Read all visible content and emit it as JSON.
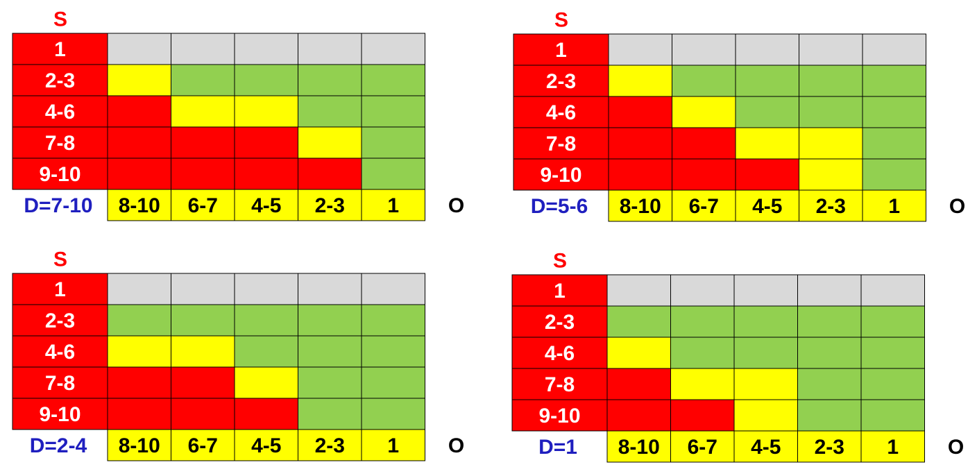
{
  "panels": [
    {
      "s_label": "S",
      "o_label": "O",
      "d_label": "D=7-10",
      "rows": [
        "1",
        "2-3",
        "4-6",
        "7-8",
        "9-10"
      ],
      "columns": [
        "8-10",
        "6-7",
        "4-5",
        "2-3",
        "1"
      ],
      "cells": [
        [
          "#d9d9d9",
          "#d9d9d9",
          "#d9d9d9",
          "#d9d9d9",
          "#d9d9d9"
        ],
        [
          "#ffff00",
          "#92d050",
          "#92d050",
          "#92d050",
          "#92d050"
        ],
        [
          "#ff0000",
          "#ffff00",
          "#ffff00",
          "#92d050",
          "#92d050"
        ],
        [
          "#ff0000",
          "#ff0000",
          "#ff0000",
          "#ffff00",
          "#92d050"
        ],
        [
          "#ff0000",
          "#ff0000",
          "#ff0000",
          "#ff0000",
          "#92d050"
        ]
      ]
    },
    {
      "s_label": "S",
      "o_label": "O",
      "d_label": "D=5-6",
      "rows": [
        "1",
        "2-3",
        "4-6",
        "7-8",
        "9-10"
      ],
      "columns": [
        "8-10",
        "6-7",
        "4-5",
        "2-3",
        "1"
      ],
      "cells": [
        [
          "#d9d9d9",
          "#d9d9d9",
          "#d9d9d9",
          "#d9d9d9",
          "#d9d9d9"
        ],
        [
          "#ffff00",
          "#92d050",
          "#92d050",
          "#92d050",
          "#92d050"
        ],
        [
          "#ff0000",
          "#ffff00",
          "#92d050",
          "#92d050",
          "#92d050"
        ],
        [
          "#ff0000",
          "#ff0000",
          "#ffff00",
          "#ffff00",
          "#92d050"
        ],
        [
          "#ff0000",
          "#ff0000",
          "#ff0000",
          "#ffff00",
          "#92d050"
        ]
      ]
    },
    {
      "s_label": "S",
      "o_label": "O",
      "d_label": "D=2-4",
      "rows": [
        "1",
        "2-3",
        "4-6",
        "7-8",
        "9-10"
      ],
      "columns": [
        "8-10",
        "6-7",
        "4-5",
        "2-3",
        "1"
      ],
      "cells": [
        [
          "#d9d9d9",
          "#d9d9d9",
          "#d9d9d9",
          "#d9d9d9",
          "#d9d9d9"
        ],
        [
          "#92d050",
          "#92d050",
          "#92d050",
          "#92d050",
          "#92d050"
        ],
        [
          "#ffff00",
          "#ffff00",
          "#92d050",
          "#92d050",
          "#92d050"
        ],
        [
          "#ff0000",
          "#ff0000",
          "#ffff00",
          "#92d050",
          "#92d050"
        ],
        [
          "#ff0000",
          "#ff0000",
          "#ff0000",
          "#92d050",
          "#92d050"
        ]
      ]
    },
    {
      "s_label": "S",
      "o_label": "O",
      "d_label": "D=1",
      "rows": [
        "1",
        "2-3",
        "4-6",
        "7-8",
        "9-10"
      ],
      "columns": [
        "8-10",
        "6-7",
        "4-5",
        "2-3",
        "1"
      ],
      "cells": [
        [
          "#d9d9d9",
          "#d9d9d9",
          "#d9d9d9",
          "#d9d9d9",
          "#d9d9d9"
        ],
        [
          "#92d050",
          "#92d050",
          "#92d050",
          "#92d050",
          "#92d050"
        ],
        [
          "#ffff00",
          "#92d050",
          "#92d050",
          "#92d050",
          "#92d050"
        ],
        [
          "#ff0000",
          "#ffff00",
          "#ffff00",
          "#92d050",
          "#92d050"
        ],
        [
          "#ff0000",
          "#ff0000",
          "#ffff00",
          "#92d050",
          "#92d050"
        ]
      ]
    }
  ]
}
